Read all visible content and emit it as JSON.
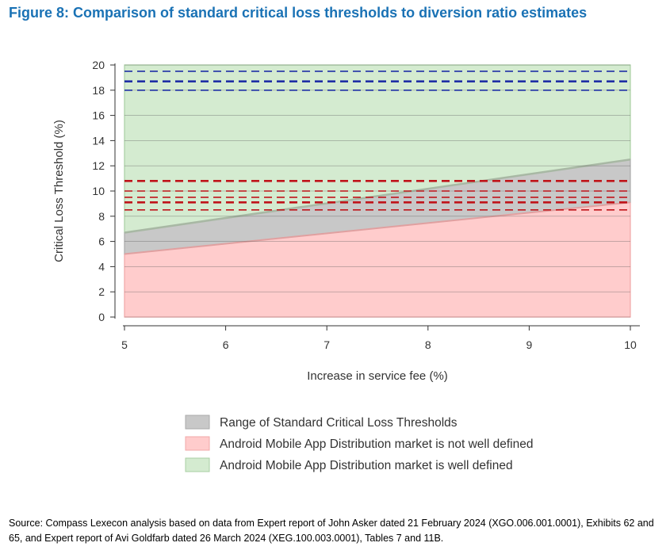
{
  "figure": {
    "title": "Figure 8: Comparison of standard critical loss thresholds to diversion ratio estimates",
    "source": "Source: Compass Lexecon analysis based on data from Expert report of John Asker dated 21 February 2024 (XGO.006.001.0001), Exhibits 62 and 65, and Expert report of Avi Goldfarb dated 26 March 2024 (XEG.100.003.0001), Tables 7 and 11B."
  },
  "chart_data": {
    "type": "area",
    "title": "",
    "xlabel": "Increase in service fee (%)",
    "ylabel": "Critical Loss Threshold (%)",
    "xlim": [
      5,
      10
    ],
    "ylim": [
      0,
      20
    ],
    "xticks": [
      5,
      6,
      7,
      8,
      9,
      10
    ],
    "yticks": [
      0,
      2,
      4,
      6,
      8,
      10,
      12,
      14,
      16,
      18,
      20
    ],
    "grid": "horizontal",
    "legend_position": "bottom",
    "x": [
      5,
      10
    ],
    "series": [
      {
        "name": "Range of Standard Critical Loss Thresholds",
        "kind": "band",
        "lower": [
          5.0,
          9.1
        ],
        "upper": [
          6.7,
          12.5
        ],
        "color": "#c8c8c8",
        "edge": "#aaaaaa"
      },
      {
        "name": "Android Mobile App Distribution market is not well defined",
        "kind": "band",
        "lower": [
          0,
          0
        ],
        "upper": [
          5.0,
          9.1
        ],
        "color": "#ffcccc",
        "edge": "#f0a8a8"
      },
      {
        "name": "Android Mobile App Distribution market is well defined",
        "kind": "band",
        "lower": [
          6.7,
          12.5
        ],
        "upper": [
          20,
          20
        ],
        "color": "#d4ebd0",
        "edge": "#a9cfa3"
      }
    ],
    "reference_lines": [
      {
        "y": 19.5,
        "color": "#1f2fa6",
        "style": "dashed",
        "weight": "thin"
      },
      {
        "y": 18.7,
        "color": "#1f2fa6",
        "style": "dashed",
        "weight": "thick"
      },
      {
        "y": 18.0,
        "color": "#1f2fa6",
        "style": "dashed",
        "weight": "thin"
      },
      {
        "y": 10.8,
        "color": "#c0141a",
        "style": "dashed",
        "weight": "thick"
      },
      {
        "y": 10.0,
        "color": "#c0141a",
        "style": "dashed",
        "weight": "thin"
      },
      {
        "y": 9.5,
        "color": "#c0141a",
        "style": "dashed",
        "weight": "thin"
      },
      {
        "y": 9.1,
        "color": "#c0141a",
        "style": "dashed",
        "weight": "thick"
      },
      {
        "y": 8.5,
        "color": "#c0141a",
        "style": "dashed",
        "weight": "thin"
      }
    ]
  }
}
